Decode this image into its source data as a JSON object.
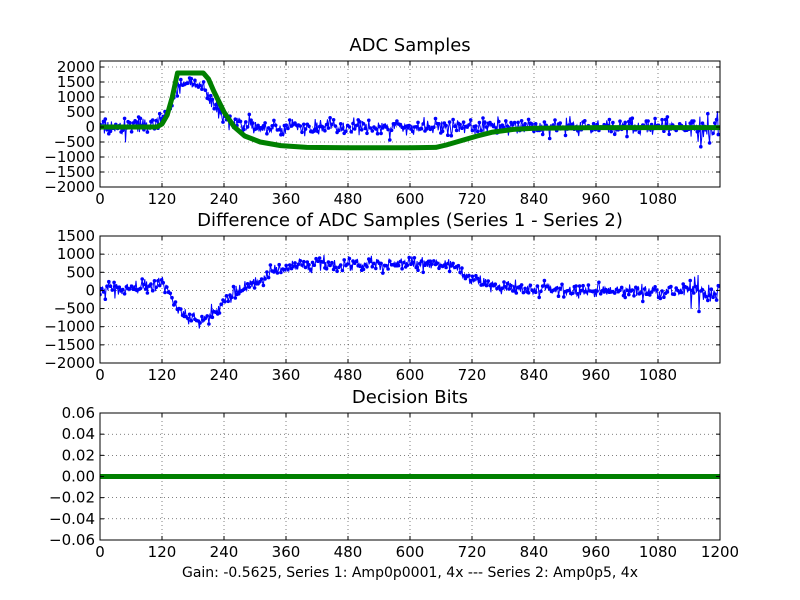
{
  "chart_data": [
    {
      "type": "line",
      "title": "ADC Samples",
      "xlim": [
        0,
        1200
      ],
      "ylim": [
        -2000,
        2200
      ],
      "x_ticks": [
        0,
        120,
        240,
        360,
        480,
        600,
        720,
        840,
        960,
        1080
      ],
      "y_ticks": [
        2000,
        1500,
        1000,
        500,
        0,
        -500,
        -1000,
        -1500,
        -2000
      ],
      "grid": true,
      "series": [
        {
          "style": "noisy-markers",
          "color": "#0000ff",
          "noise_amplitude": 300,
          "envelope": [
            [
              0,
              0
            ],
            [
              110,
              100
            ],
            [
              130,
              400
            ],
            [
              150,
              1300
            ],
            [
              170,
              1550
            ],
            [
              200,
              1250
            ],
            [
              230,
              500
            ],
            [
              260,
              100
            ],
            [
              300,
              0
            ],
            [
              1150,
              0
            ],
            [
              1180,
              0
            ],
            [
              1200,
              0
            ]
          ]
        },
        {
          "style": "thick-line",
          "color": "#008000",
          "points": [
            [
              0,
              0
            ],
            [
              110,
              0
            ],
            [
              120,
              100
            ],
            [
              130,
              400
            ],
            [
              140,
              1000
            ],
            [
              150,
              1800
            ],
            [
              200,
              1800
            ],
            [
              210,
              1600
            ],
            [
              220,
              1200
            ],
            [
              240,
              500
            ],
            [
              260,
              0
            ],
            [
              280,
              -300
            ],
            [
              310,
              -500
            ],
            [
              350,
              -620
            ],
            [
              400,
              -680
            ],
            [
              480,
              -690
            ],
            [
              600,
              -690
            ],
            [
              650,
              -680
            ],
            [
              670,
              -600
            ],
            [
              700,
              -450
            ],
            [
              730,
              -300
            ],
            [
              760,
              -170
            ],
            [
              800,
              -80
            ],
            [
              840,
              -40
            ],
            [
              960,
              -20
            ],
            [
              1080,
              -20
            ],
            [
              1200,
              -20
            ]
          ]
        }
      ]
    },
    {
      "type": "line",
      "title": "Difference of ADC Samples (Series 1 - Series 2)",
      "xlim": [
        0,
        1200
      ],
      "ylim": [
        -2000,
        1500
      ],
      "x_ticks": [
        0,
        120,
        240,
        360,
        480,
        600,
        720,
        840,
        960,
        1080
      ],
      "y_ticks": [
        1500,
        1000,
        500,
        0,
        -500,
        -1000,
        -1500,
        -2000
      ],
      "grid": true,
      "series": [
        {
          "style": "noisy-markers",
          "color": "#0000ff",
          "noise_amplitude": 220,
          "envelope": [
            [
              0,
              0
            ],
            [
              100,
              100
            ],
            [
              120,
              250
            ],
            [
              130,
              0
            ],
            [
              145,
              -400
            ],
            [
              160,
              -650
            ],
            [
              200,
              -850
            ],
            [
              230,
              -400
            ],
            [
              270,
              0
            ],
            [
              320,
              400
            ],
            [
              360,
              650
            ],
            [
              480,
              700
            ],
            [
              600,
              750
            ],
            [
              680,
              680
            ],
            [
              720,
              300
            ],
            [
              780,
              100
            ],
            [
              840,
              0
            ],
            [
              1000,
              -20
            ],
            [
              1200,
              -20
            ]
          ]
        }
      ]
    },
    {
      "type": "line",
      "title": "Decision Bits",
      "xlim": [
        0,
        1200
      ],
      "ylim": [
        -0.06,
        0.06
      ],
      "x_ticks": [
        0,
        120,
        240,
        360,
        480,
        600,
        720,
        840,
        960,
        1080,
        1200
      ],
      "y_ticks": [
        0.06,
        0.04,
        0.02,
        0.0,
        -0.02,
        -0.04,
        -0.06
      ],
      "y_tick_labels": [
        "0.06",
        "0.04",
        "0.02",
        "0.00",
        "−0.02",
        "−0.04",
        "−0.06"
      ],
      "grid": true,
      "series": [
        {
          "style": "thick-line",
          "color": "#008000",
          "points": [
            [
              0,
              0
            ],
            [
              1200,
              0
            ]
          ]
        }
      ]
    }
  ],
  "footer": {
    "caption": "Gain: -0.5625, Series 1: Amp0p0001, 4x --- Series 2: Amp0p5, 4x"
  }
}
